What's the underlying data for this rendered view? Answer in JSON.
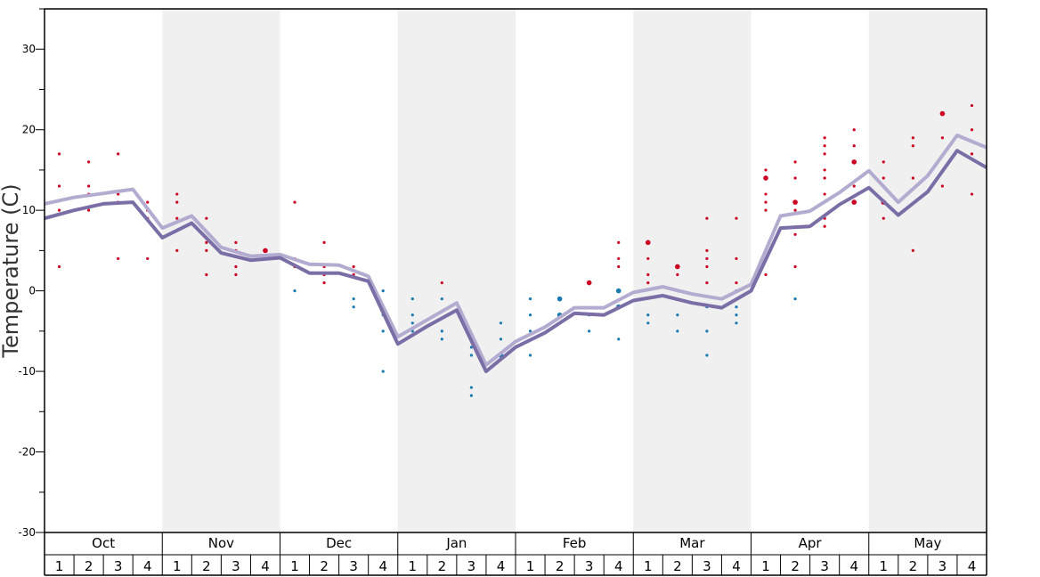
{
  "chart_data": {
    "type": "line",
    "title": "",
    "xlabel": "",
    "ylabel": "Temperature (C)",
    "ylim": [
      -30,
      35
    ],
    "ytick_values": [
      -30,
      -20,
      -10,
      0,
      10,
      20,
      30
    ],
    "ytick_labels": [
      "-30",
      "-20",
      "-10",
      "0",
      "10",
      "20",
      "30"
    ],
    "months": [
      "Oct",
      "Nov",
      "Dec",
      "Jan",
      "Feb",
      "Mar",
      "Apr",
      "May"
    ],
    "weeks": [
      "1",
      "2",
      "3",
      "4"
    ],
    "colors": {
      "line_dark": "#7b6ea6",
      "line_light": "#b3acd0",
      "warm_dot": "#cc0022",
      "cold_dot": "#1a7ab0",
      "band": "#f0f0f0"
    },
    "series": [
      {
        "values": [
          9.0,
          10.0,
          10.8,
          11.0,
          6.6,
          8.4,
          4.7,
          3.8,
          4.1,
          2.2,
          2.2,
          1.2,
          -6.6,
          -4.4,
          -2.4,
          -10.0,
          -7.0,
          -5.2,
          -2.8,
          -3.0,
          -1.2,
          -0.6,
          -1.5,
          -2.1,
          0.0,
          7.8,
          8.0,
          10.7,
          12.8,
          9.4,
          12.3,
          17.4,
          15.3
        ]
      },
      {
        "values": [
          10.8,
          11.6,
          12.1,
          12.6,
          7.8,
          9.3,
          5.4,
          4.3,
          4.5,
          3.3,
          3.2,
          1.8,
          -5.7,
          -3.6,
          -1.5,
          -9.2,
          -6.3,
          -4.5,
          -2.1,
          -2.1,
          -0.2,
          0.5,
          -0.4,
          -1.0,
          0.8,
          9.3,
          9.9,
          12.2,
          14.9,
          11.0,
          14.3,
          19.3,
          17.8
        ]
      }
    ],
    "scatter": [
      {
        "x": 1,
        "y": 17,
        "t": "w"
      },
      {
        "x": 1,
        "y": 13,
        "t": "w"
      },
      {
        "x": 1,
        "y": 10,
        "t": "w"
      },
      {
        "x": 1,
        "y": 3,
        "t": "w"
      },
      {
        "x": 2,
        "y": 16,
        "t": "w"
      },
      {
        "x": 2,
        "y": 13,
        "t": "w"
      },
      {
        "x": 2,
        "y": 12,
        "t": "w"
      },
      {
        "x": 2,
        "y": 10,
        "t": "w"
      },
      {
        "x": 3,
        "y": 17,
        "t": "w"
      },
      {
        "x": 3,
        "y": 12,
        "t": "w"
      },
      {
        "x": 3,
        "y": 11,
        "t": "w"
      },
      {
        "x": 3,
        "y": 4,
        "t": "w"
      },
      {
        "x": 4,
        "y": 11,
        "t": "w"
      },
      {
        "x": 4,
        "y": 10,
        "t": "w"
      },
      {
        "x": 4,
        "y": 9,
        "t": "w"
      },
      {
        "x": 4,
        "y": 4,
        "t": "w"
      },
      {
        "x": 5,
        "y": 12,
        "t": "w"
      },
      {
        "x": 5,
        "y": 11,
        "t": "w"
      },
      {
        "x": 5,
        "y": 9,
        "t": "w"
      },
      {
        "x": 5,
        "y": 5,
        "t": "w"
      },
      {
        "x": 6,
        "y": 9,
        "t": "w"
      },
      {
        "x": 6,
        "y": 6,
        "t": "w"
      },
      {
        "x": 6,
        "y": 5,
        "t": "w"
      },
      {
        "x": 6,
        "y": 2,
        "t": "w"
      },
      {
        "x": 7,
        "y": 6,
        "t": "w"
      },
      {
        "x": 7,
        "y": 5,
        "t": "w"
      },
      {
        "x": 7,
        "y": 3,
        "t": "w"
      },
      {
        "x": 7,
        "y": 2,
        "t": "w"
      },
      {
        "x": 8,
        "y": 5,
        "t": "w",
        "big": true
      },
      {
        "x": 8,
        "y": 4,
        "t": "w"
      },
      {
        "x": 9,
        "y": 11,
        "t": "w"
      },
      {
        "x": 9,
        "y": 4,
        "t": "w"
      },
      {
        "x": 9,
        "y": 3,
        "t": "w"
      },
      {
        "x": 9,
        "y": 0,
        "t": "c"
      },
      {
        "x": 10,
        "y": 6,
        "t": "w"
      },
      {
        "x": 10,
        "y": 3,
        "t": "w"
      },
      {
        "x": 10,
        "y": 2,
        "t": "w"
      },
      {
        "x": 10,
        "y": 1,
        "t": "w"
      },
      {
        "x": 11,
        "y": 3,
        "t": "w"
      },
      {
        "x": 11,
        "y": 2,
        "t": "w"
      },
      {
        "x": 11,
        "y": -1,
        "t": "c"
      },
      {
        "x": 11,
        "y": -2,
        "t": "c"
      },
      {
        "x": 12,
        "y": 0,
        "t": "c"
      },
      {
        "x": 12,
        "y": -3,
        "t": "c"
      },
      {
        "x": 12,
        "y": -5,
        "t": "c"
      },
      {
        "x": 12,
        "y": -10,
        "t": "c"
      },
      {
        "x": 13,
        "y": -1,
        "t": "c"
      },
      {
        "x": 13,
        "y": -3,
        "t": "c"
      },
      {
        "x": 13,
        "y": -4,
        "t": "c"
      },
      {
        "x": 13,
        "y": -5,
        "t": "c"
      },
      {
        "x": 14,
        "y": 1,
        "t": "w"
      },
      {
        "x": 14,
        "y": -1,
        "t": "c"
      },
      {
        "x": 14,
        "y": -5,
        "t": "c"
      },
      {
        "x": 14,
        "y": -6,
        "t": "c"
      },
      {
        "x": 15,
        "y": -7,
        "t": "c"
      },
      {
        "x": 15,
        "y": -8,
        "t": "c"
      },
      {
        "x": 15,
        "y": -12,
        "t": "c"
      },
      {
        "x": 15,
        "y": -13,
        "t": "c"
      },
      {
        "x": 16,
        "y": -4,
        "t": "c"
      },
      {
        "x": 16,
        "y": -6,
        "t": "c"
      },
      {
        "x": 16,
        "y": -8,
        "t": "c",
        "big": true
      },
      {
        "x": 17,
        "y": -1,
        "t": "c"
      },
      {
        "x": 17,
        "y": -3,
        "t": "c"
      },
      {
        "x": 17,
        "y": -5,
        "t": "c"
      },
      {
        "x": 17,
        "y": -8,
        "t": "c"
      },
      {
        "x": 18,
        "y": -1,
        "t": "c",
        "big": true
      },
      {
        "x": 18,
        "y": -3,
        "t": "c",
        "big": true
      },
      {
        "x": 19,
        "y": 1,
        "t": "w",
        "big": true
      },
      {
        "x": 19,
        "y": -3,
        "t": "c"
      },
      {
        "x": 19,
        "y": -5,
        "t": "c"
      },
      {
        "x": 20,
        "y": 6,
        "t": "w"
      },
      {
        "x": 20,
        "y": 4,
        "t": "w"
      },
      {
        "x": 20,
        "y": 3,
        "t": "w"
      },
      {
        "x": 20,
        "y": 0,
        "t": "c",
        "big": true
      },
      {
        "x": 20,
        "y": -2,
        "t": "c",
        "big": true
      },
      {
        "x": 20,
        "y": -6,
        "t": "c"
      },
      {
        "x": 21,
        "y": 6,
        "t": "w",
        "big": true
      },
      {
        "x": 21,
        "y": 4,
        "t": "w"
      },
      {
        "x": 21,
        "y": 2,
        "t": "w"
      },
      {
        "x": 21,
        "y": 1,
        "t": "w"
      },
      {
        "x": 21,
        "y": -3,
        "t": "c"
      },
      {
        "x": 21,
        "y": -4,
        "t": "c"
      },
      {
        "x": 22,
        "y": 3,
        "t": "w",
        "big": true
      },
      {
        "x": 22,
        "y": 2,
        "t": "w"
      },
      {
        "x": 22,
        "y": 0,
        "t": "c"
      },
      {
        "x": 22,
        "y": -3,
        "t": "c"
      },
      {
        "x": 22,
        "y": -5,
        "t": "c"
      },
      {
        "x": 23,
        "y": 9,
        "t": "w"
      },
      {
        "x": 23,
        "y": 5,
        "t": "w"
      },
      {
        "x": 23,
        "y": 4,
        "t": "w"
      },
      {
        "x": 23,
        "y": 3,
        "t": "w"
      },
      {
        "x": 23,
        "y": 1,
        "t": "w"
      },
      {
        "x": 23,
        "y": -2,
        "t": "c"
      },
      {
        "x": 23,
        "y": -5,
        "t": "c"
      },
      {
        "x": 23,
        "y": -8,
        "t": "c"
      },
      {
        "x": 24,
        "y": 9,
        "t": "w"
      },
      {
        "x": 24,
        "y": 4,
        "t": "w"
      },
      {
        "x": 24,
        "y": 1,
        "t": "w"
      },
      {
        "x": 24,
        "y": 0,
        "t": "c"
      },
      {
        "x": 24,
        "y": -2,
        "t": "c"
      },
      {
        "x": 24,
        "y": -3,
        "t": "c"
      },
      {
        "x": 24,
        "y": -4,
        "t": "c"
      },
      {
        "x": 25,
        "y": 15,
        "t": "w"
      },
      {
        "x": 25,
        "y": 14,
        "t": "w",
        "big": true
      },
      {
        "x": 25,
        "y": 12,
        "t": "w"
      },
      {
        "x": 25,
        "y": 11,
        "t": "w"
      },
      {
        "x": 25,
        "y": 10,
        "t": "w"
      },
      {
        "x": 25,
        "y": 5,
        "t": "w"
      },
      {
        "x": 25,
        "y": 2,
        "t": "w"
      },
      {
        "x": 26,
        "y": 16,
        "t": "w"
      },
      {
        "x": 26,
        "y": 14,
        "t": "w"
      },
      {
        "x": 26,
        "y": 11,
        "t": "w",
        "big": true
      },
      {
        "x": 26,
        "y": 10,
        "t": "w"
      },
      {
        "x": 26,
        "y": 7,
        "t": "w"
      },
      {
        "x": 26,
        "y": 3,
        "t": "w"
      },
      {
        "x": 26,
        "y": -1,
        "t": "c"
      },
      {
        "x": 27,
        "y": 19,
        "t": "w"
      },
      {
        "x": 27,
        "y": 18,
        "t": "w"
      },
      {
        "x": 27,
        "y": 17,
        "t": "w"
      },
      {
        "x": 27,
        "y": 15,
        "t": "w"
      },
      {
        "x": 27,
        "y": 14,
        "t": "w"
      },
      {
        "x": 27,
        "y": 12,
        "t": "w"
      },
      {
        "x": 27,
        "y": 9,
        "t": "w"
      },
      {
        "x": 27,
        "y": 8,
        "t": "w"
      },
      {
        "x": 28,
        "y": 20,
        "t": "w"
      },
      {
        "x": 28,
        "y": 18,
        "t": "w"
      },
      {
        "x": 28,
        "y": 16,
        "t": "w",
        "big": true
      },
      {
        "x": 28,
        "y": 13,
        "t": "w"
      },
      {
        "x": 28,
        "y": 11,
        "t": "w",
        "big": true
      },
      {
        "x": 29,
        "y": 16,
        "t": "w"
      },
      {
        "x": 29,
        "y": 14,
        "t": "w"
      },
      {
        "x": 29,
        "y": 13,
        "t": "w"
      },
      {
        "x": 29,
        "y": 11,
        "t": "w",
        "big": true
      },
      {
        "x": 29,
        "y": 9,
        "t": "w"
      },
      {
        "x": 30,
        "y": 19,
        "t": "w"
      },
      {
        "x": 30,
        "y": 18,
        "t": "w"
      },
      {
        "x": 30,
        "y": 14,
        "t": "w"
      },
      {
        "x": 30,
        "y": 5,
        "t": "w"
      },
      {
        "x": 31,
        "y": 22,
        "t": "w",
        "big": true
      },
      {
        "x": 31,
        "y": 19,
        "t": "w"
      },
      {
        "x": 31,
        "y": 13,
        "t": "w"
      },
      {
        "x": 32,
        "y": 23,
        "t": "w"
      },
      {
        "x": 32,
        "y": 20,
        "t": "w"
      },
      {
        "x": 32,
        "y": 17,
        "t": "w"
      },
      {
        "x": 32,
        "y": 12,
        "t": "w"
      }
    ]
  }
}
